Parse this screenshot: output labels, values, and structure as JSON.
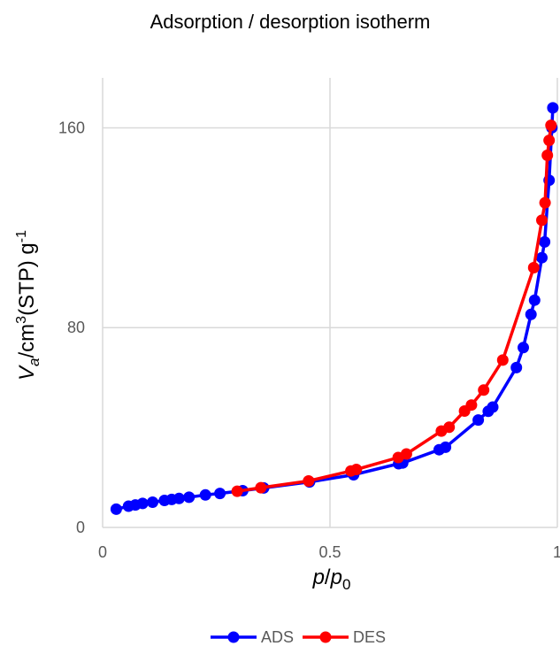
{
  "chart_data": {
    "type": "line",
    "title": "Adsorption / desorption isotherm",
    "xlabel": {
      "main": "p",
      "sep": "/",
      "sub_base": "p",
      "sub": "0"
    },
    "ylabel": {
      "var": "V",
      "var_sub": "a",
      "rest1": "/cm",
      "sup1": "3",
      "rest2": "(STP) g",
      "sup2": "-1"
    },
    "xlim": [
      0,
      1
    ],
    "ylim": [
      0,
      180
    ],
    "x_ticks": [
      0,
      0.5,
      1
    ],
    "x_tick_labels": [
      "0",
      "0.5",
      "1"
    ],
    "y_ticks": [
      0,
      80,
      160
    ],
    "y_tick_labels": [
      "0",
      "80",
      "160"
    ],
    "grid": true,
    "legend_position": "bottom",
    "series": [
      {
        "name": "ADS",
        "color": "#0000ff",
        "points": [
          [
            0.03,
            7.3
          ],
          [
            0.057,
            8.5
          ],
          [
            0.072,
            9.0
          ],
          [
            0.088,
            9.6
          ],
          [
            0.11,
            10.1
          ],
          [
            0.136,
            10.8
          ],
          [
            0.152,
            11.2
          ],
          [
            0.168,
            11.6
          ],
          [
            0.19,
            12.1
          ],
          [
            0.226,
            13.0
          ],
          [
            0.258,
            13.6
          ],
          [
            0.308,
            14.7
          ],
          [
            0.354,
            15.8
          ],
          [
            0.455,
            18.2
          ],
          [
            0.552,
            21.1
          ],
          [
            0.651,
            25.5
          ],
          [
            0.66,
            25.8
          ],
          [
            0.74,
            31.1
          ],
          [
            0.754,
            32.1
          ],
          [
            0.826,
            43.0
          ],
          [
            0.848,
            46.5
          ],
          [
            0.858,
            48.2
          ],
          [
            0.91,
            64.0
          ],
          [
            0.925,
            72.0
          ],
          [
            0.942,
            85.3
          ],
          [
            0.95,
            91.0
          ],
          [
            0.966,
            108.0
          ],
          [
            0.972,
            114.3
          ],
          [
            0.982,
            139.0
          ],
          [
            0.988,
            160.0
          ],
          [
            0.99,
            168.0
          ]
        ]
      },
      {
        "name": "DES",
        "color": "#ff0000",
        "points": [
          [
            0.296,
            14.5
          ],
          [
            0.348,
            15.9
          ],
          [
            0.453,
            18.6
          ],
          [
            0.546,
            22.6
          ],
          [
            0.558,
            23.2
          ],
          [
            0.65,
            28.0
          ],
          [
            0.668,
            29.4
          ],
          [
            0.745,
            38.6
          ],
          [
            0.762,
            40.1
          ],
          [
            0.796,
            46.6
          ],
          [
            0.811,
            49.0
          ],
          [
            0.838,
            55.0
          ],
          [
            0.88,
            67.0
          ],
          [
            0.948,
            104.0
          ],
          [
            0.966,
            123.0
          ],
          [
            0.973,
            130.0
          ],
          [
            0.978,
            149.0
          ],
          [
            0.982,
            155.0
          ],
          [
            0.986,
            161.0
          ]
        ]
      }
    ]
  }
}
